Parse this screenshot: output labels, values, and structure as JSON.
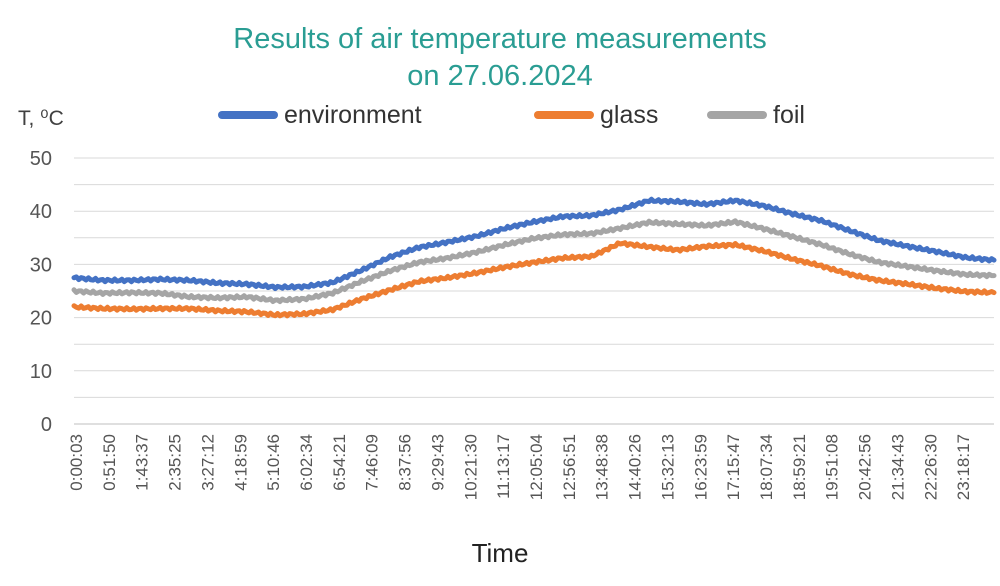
{
  "chart_data": {
    "type": "line",
    "title_lines": [
      "Results of air temperature measurements",
      "on 27.06.2024"
    ],
    "xlabel": "Time",
    "ylabel": "T, ⁰C",
    "ylim": [
      0,
      50
    ],
    "yticks": [
      0,
      10,
      20,
      30,
      40,
      50
    ],
    "grid": true,
    "legend_position": "top",
    "x_tick_labels": [
      "0:00:03",
      "0:51:50",
      "1:43:37",
      "2:35:25",
      "3:27:12",
      "4:18:59",
      "5:10:46",
      "6:02:34",
      "6:54:21",
      "7:46:09",
      "8:37:56",
      "9:29:43",
      "10:21:30",
      "11:13:17",
      "12:05:04",
      "12:56:51",
      "13:48:38",
      "14:40:26",
      "15:32:13",
      "16:23:59",
      "17:15:47",
      "18:07:34",
      "18:59:21",
      "19:51:08",
      "20:42:56",
      "21:34:43",
      "22:26:30",
      "23:18:17"
    ],
    "series": [
      {
        "name": "environment",
        "color": "#4472c4",
        "values": [
          27.5,
          27.0,
          27.0,
          27.2,
          27.0,
          26.5,
          26.3,
          25.7,
          25.8,
          26.6,
          28.9,
          31.4,
          33.2,
          34.2,
          35.3,
          36.8,
          38.0,
          39.0,
          39.2,
          40.3,
          42.0,
          41.8,
          41.3,
          42.0,
          41.0,
          39.5,
          38.2,
          36.3,
          34.5,
          33.4,
          32.4,
          31.3,
          30.8
        ]
      },
      {
        "name": "glass",
        "color": "#ed7d31",
        "values": [
          22.0,
          21.7,
          21.6,
          21.7,
          21.7,
          21.3,
          21.1,
          20.5,
          20.7,
          21.5,
          23.5,
          25.2,
          26.8,
          27.5,
          28.4,
          29.5,
          30.4,
          31.2,
          31.5,
          34.0,
          33.3,
          32.7,
          33.4,
          33.7,
          32.5,
          31.0,
          29.7,
          28.1,
          27.0,
          26.3,
          25.5,
          24.9,
          24.7
        ]
      },
      {
        "name": "foil",
        "color": "#a5a5a5",
        "values": [
          25.0,
          24.6,
          24.7,
          24.6,
          23.9,
          23.7,
          23.9,
          23.2,
          23.5,
          24.6,
          26.8,
          28.8,
          30.4,
          31.2,
          32.3,
          33.7,
          34.9,
          35.6,
          35.8,
          36.8,
          37.9,
          37.6,
          37.3,
          38.0,
          36.7,
          35.2,
          33.7,
          31.9,
          30.4,
          29.6,
          28.8,
          28.1,
          27.9
        ]
      }
    ]
  }
}
